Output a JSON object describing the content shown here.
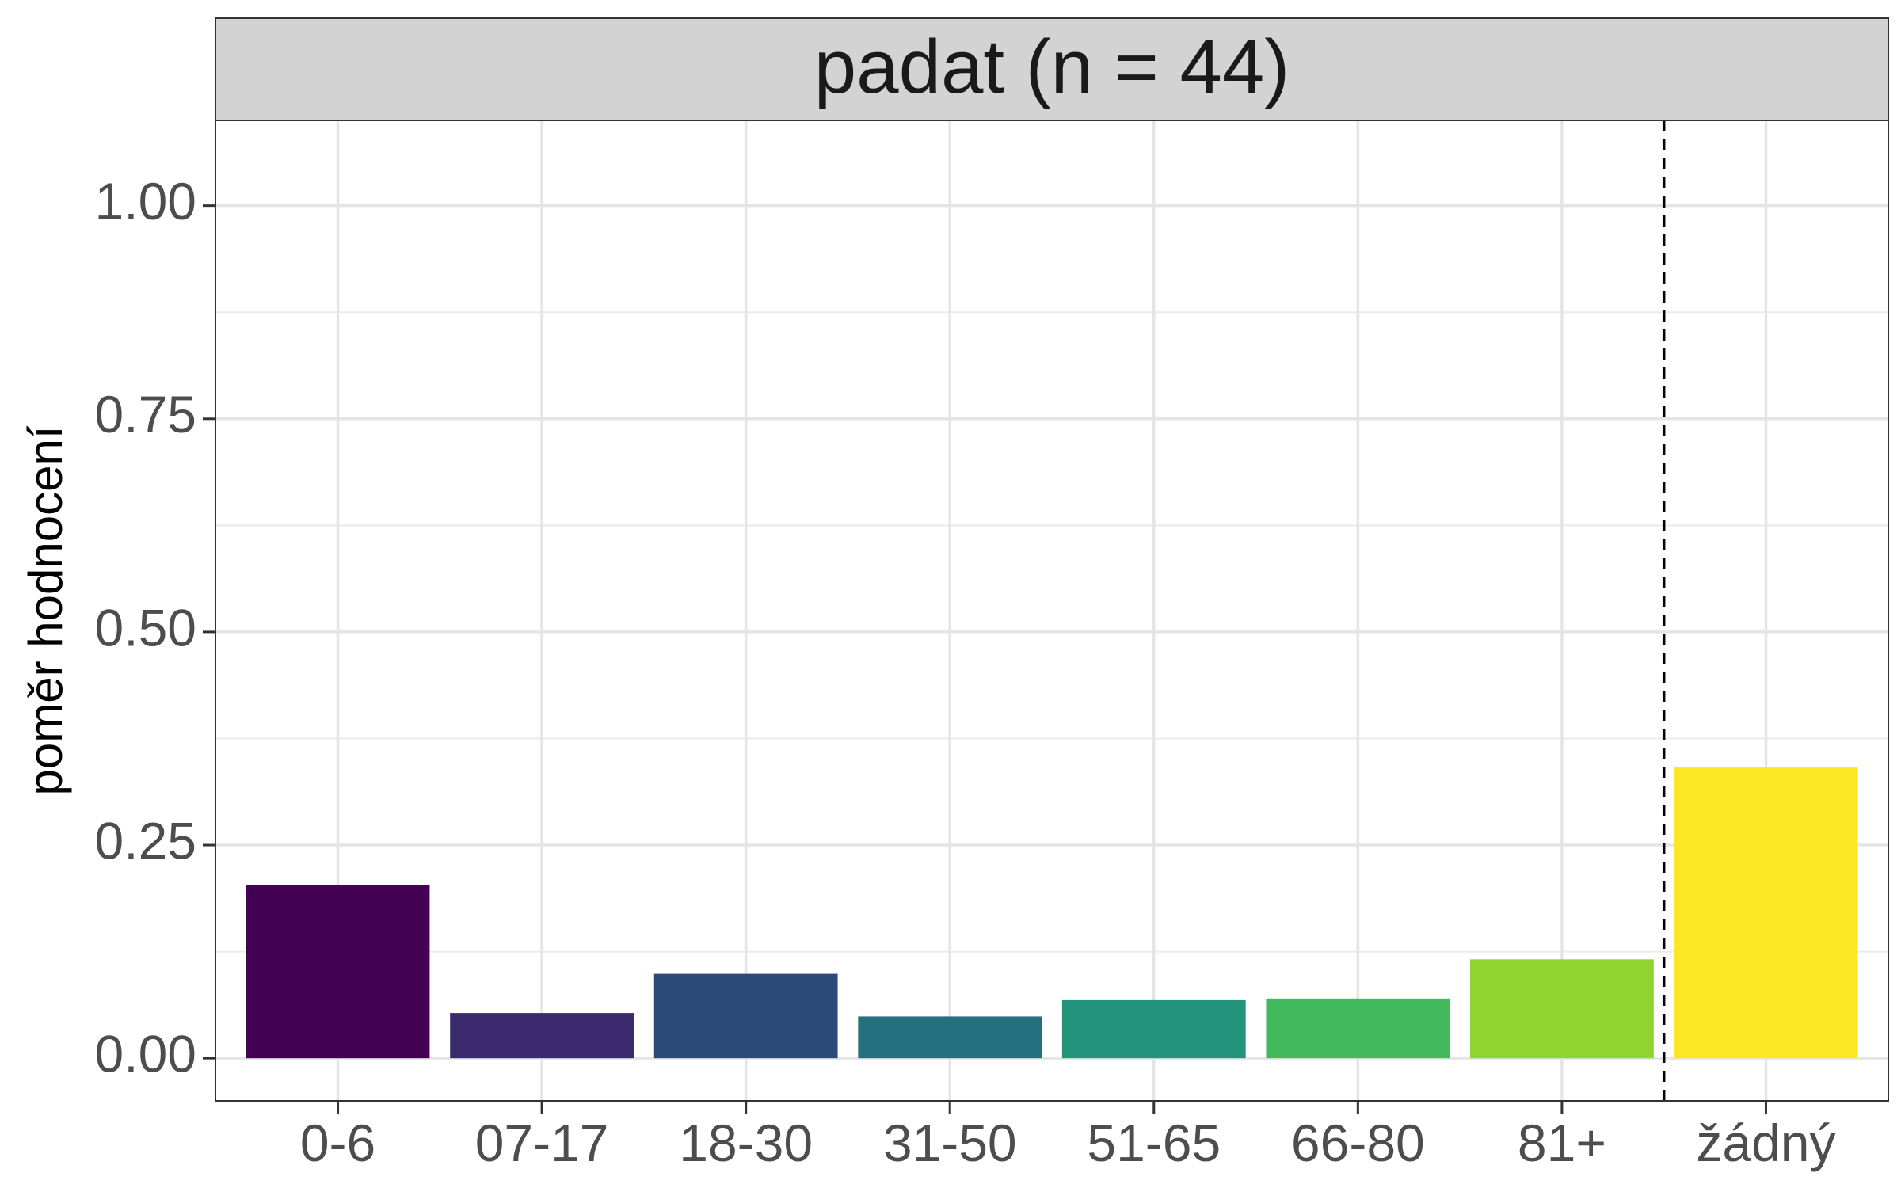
{
  "chart_data": {
    "type": "bar",
    "facet_title": "padat (n = 44)",
    "xlabel": "",
    "ylabel": "poměr hodnocení",
    "categories": [
      "0-6",
      "07-17",
      "18-30",
      "31-50",
      "51-65",
      "66-80",
      "81+",
      "žádný"
    ],
    "values": [
      0.203,
      0.053,
      0.099,
      0.049,
      0.069,
      0.07,
      0.116,
      0.341
    ],
    "colors": [
      "#440154",
      "#3B2A6E",
      "#2D4B78",
      "#24707E",
      "#23937B",
      "#42B95C",
      "#90D52F",
      "#FDE725"
    ],
    "ylim": [
      -0.05,
      1.1
    ],
    "y_ticks": [
      0.0,
      0.25,
      0.5,
      0.75,
      1.0
    ],
    "y_tick_labels": [
      "0.00",
      "0.25",
      "0.50",
      "0.75",
      "1.00"
    ],
    "grid": true,
    "reference_line": {
      "after_category": "81+",
      "style": "dashed",
      "color": "#000000"
    }
  }
}
